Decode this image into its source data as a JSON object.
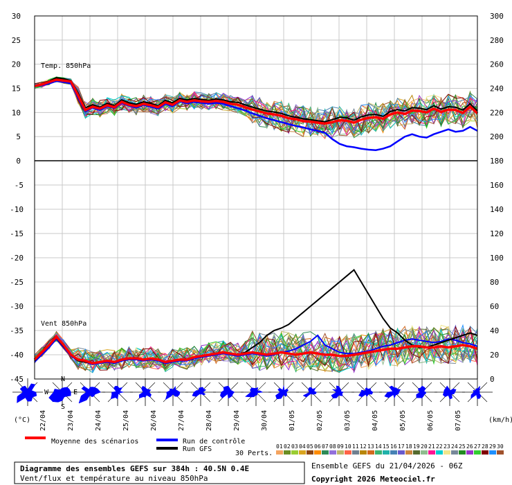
{
  "chart_data": {
    "type": "line",
    "temp_panel": {
      "label": "Temp. 850hPa",
      "left_ticks": [
        "30",
        "25",
        "20",
        "15",
        "10",
        "5",
        "0"
      ],
      "right_ticks": [
        "300",
        "280",
        "260",
        "240",
        "220",
        "200",
        "180"
      ],
      "ylim": [
        0,
        30
      ],
      "mean": [
        15.5,
        15.8,
        16.3,
        16.8,
        16.6,
        16.4,
        13.5,
        10.5,
        11.2,
        10.8,
        11.5,
        11.1,
        12.2,
        11.6,
        11.3,
        11.8,
        11.5,
        11.1,
        12.1,
        11.6,
        12.5,
        12.2,
        12.5,
        12.3,
        12.2,
        12.4,
        12.2,
        11.8,
        11.6,
        11.1,
        10.6,
        10.2,
        9.8,
        9.6,
        9.3,
        8.8,
        8.6,
        8.2,
        8.1,
        7.9,
        7.7,
        8.0,
        8.4,
        8.3,
        7.9,
        8.5,
        8.9,
        9.0,
        8.7,
        9.6,
        10.0,
        9.7,
        10.4,
        10.3,
        10.0,
        10.8,
        10.1,
        10.6,
        10.5,
        9.9,
        11.2,
        9.8
      ],
      "control": [
        15.5,
        15.6,
        16.0,
        16.5,
        16.3,
        16.0,
        13.0,
        10.2,
        11.0,
        10.5,
        11.3,
        10.9,
        12.0,
        11.4,
        11.0,
        11.6,
        11.2,
        10.8,
        11.8,
        11.3,
        12.3,
        11.9,
        12.2,
        12.0,
        11.8,
        12.0,
        11.8,
        11.3,
        10.9,
        10.4,
        9.8,
        9.3,
        8.8,
        8.4,
        8.0,
        7.6,
        7.2,
        6.9,
        6.5,
        6.2,
        5.8,
        4.5,
        3.5,
        3.0,
        2.8,
        2.5,
        2.3,
        2.2,
        2.5,
        3.0,
        4.0,
        5.0,
        5.5,
        5.0,
        4.8,
        5.5,
        6.0,
        6.5,
        6.0,
        6.2,
        7.0,
        6.2
      ],
      "gfs": [
        15.5,
        15.9,
        16.5,
        17.2,
        17.0,
        16.6,
        14.0,
        11.0,
        11.6,
        11.1,
        11.9,
        11.4,
        12.6,
        12.0,
        11.7,
        12.2,
        11.9,
        11.4,
        12.5,
        12.0,
        12.9,
        12.6,
        12.9,
        12.7,
        12.5,
        12.8,
        12.6,
        12.2,
        12.1,
        11.6,
        11.1,
        10.7,
        10.3,
        10.1,
        9.8,
        9.3,
        9.0,
        8.7,
        8.5,
        8.3,
        8.1,
        8.5,
        9.0,
        8.9,
        8.4,
        9.1,
        9.5,
        9.6,
        9.2,
        10.2,
        10.6,
        10.3,
        11.0,
        10.9,
        10.6,
        11.4,
        10.7,
        11.2,
        11.1,
        10.5,
        11.8,
        10.3
      ]
    },
    "wind_panel": {
      "label": "Vent 850hPa",
      "left_ticks": [
        "-5",
        "-10",
        "-15",
        "-20",
        "-25",
        "-30",
        "-35",
        "-40",
        "-45"
      ],
      "right_ticks": [
        "180",
        "160",
        "140",
        "120",
        "100",
        "80",
        "60",
        "40",
        "20",
        "0"
      ],
      "ylim_kmh": [
        0,
        180
      ],
      "mean": [
        16,
        22,
        28,
        35,
        28,
        20,
        16,
        15,
        13,
        14,
        15,
        14,
        16,
        17,
        17,
        16,
        17,
        16,
        14,
        15,
        16,
        16,
        18,
        19,
        20,
        21,
        22,
        21,
        20,
        21,
        22,
        21,
        20,
        21,
        22,
        21,
        20,
        21,
        22,
        21,
        20,
        20,
        19,
        19,
        20,
        21,
        22,
        23,
        24,
        25,
        25,
        26,
        27,
        27,
        26,
        26,
        27,
        26,
        27,
        28,
        27,
        25
      ],
      "control": [
        14,
        20,
        26,
        33,
        26,
        19,
        15,
        14,
        12,
        13,
        14,
        13,
        15,
        16,
        16,
        15,
        16,
        15,
        13,
        14,
        15,
        15,
        17,
        18,
        19,
        20,
        21,
        20,
        19,
        20,
        21,
        20,
        19,
        20,
        22,
        23,
        25,
        28,
        31,
        36,
        28,
        25,
        22,
        21,
        21,
        22,
        23,
        25,
        27,
        28,
        30,
        32,
        33,
        32,
        31,
        30,
        31,
        33,
        32,
        30,
        29,
        27
      ],
      "gfs": [
        15,
        22,
        28,
        34,
        27,
        20,
        15,
        14,
        13,
        14,
        15,
        14,
        16,
        17,
        17,
        16,
        17,
        16,
        14,
        15,
        16,
        16,
        18,
        19,
        20,
        21,
        22,
        21,
        20,
        22,
        26,
        30,
        36,
        40,
        42,
        45,
        50,
        55,
        60,
        65,
        70,
        75,
        80,
        85,
        90,
        80,
        70,
        60,
        50,
        42,
        38,
        32,
        28,
        26,
        26,
        28,
        30,
        32,
        34,
        36,
        38,
        36
      ]
    },
    "date_labels": [
      "22/04",
      "23/04",
      "24/04",
      "25/04",
      "26/04",
      "27/04",
      "28/04",
      "29/04",
      "30/04",
      "01/05",
      "02/05",
      "03/05",
      "04/05",
      "05/05",
      "06/05",
      "07/05"
    ],
    "left_unit": "(°C)",
    "right_unit": "(km/h)",
    "compass": {
      "n": "N",
      "s": "S",
      "w": "W",
      "e": "E"
    },
    "legend": {
      "mean": "Moyenne des scénarios",
      "control": "Run de contrôle",
      "gfs": "Run GFS",
      "perts_label": "30 Perts.",
      "perts": [
        "01",
        "02",
        "03",
        "04",
        "05",
        "06",
        "07",
        "08",
        "09",
        "10",
        "11",
        "12",
        "13",
        "14",
        "15",
        "16",
        "17",
        "18",
        "19",
        "20",
        "21",
        "22",
        "23",
        "24",
        "25",
        "26",
        "27",
        "28",
        "29",
        "30"
      ],
      "pert_colors": [
        "#f4a460",
        "#6b8e23",
        "#9acd32",
        "#daa520",
        "#8b4513",
        "#ff8c00",
        "#2e8b57",
        "#9370db",
        "#bdb76b",
        "#ff6347",
        "#708090",
        "#b8860b",
        "#d2691e",
        "#3cb371",
        "#20b2aa",
        "#4682b4",
        "#6a5acd",
        "#cd853f",
        "#556b2f",
        "#8fbc8f",
        "#ff1493",
        "#00ced1",
        "#f0e68c",
        "#778899",
        "#228b22",
        "#9932cc",
        "#32cd32",
        "#800000",
        "#1e90ff",
        "#a0522d"
      ]
    },
    "title_line1": "Diagramme des ensembles GEFS sur 384h : 40.5N 0.4E",
    "title_line2": "Vent/flux et température au niveau 850hPa",
    "run_info": "Ensemble GEFS du 21/04/2026 - 06Z",
    "copyright": "Copyright 2026 Meteociel.fr",
    "colors": {
      "mean": "#ff0000",
      "control": "#0000ff",
      "gfs": "#000000",
      "rose": "#0000ff"
    }
  }
}
